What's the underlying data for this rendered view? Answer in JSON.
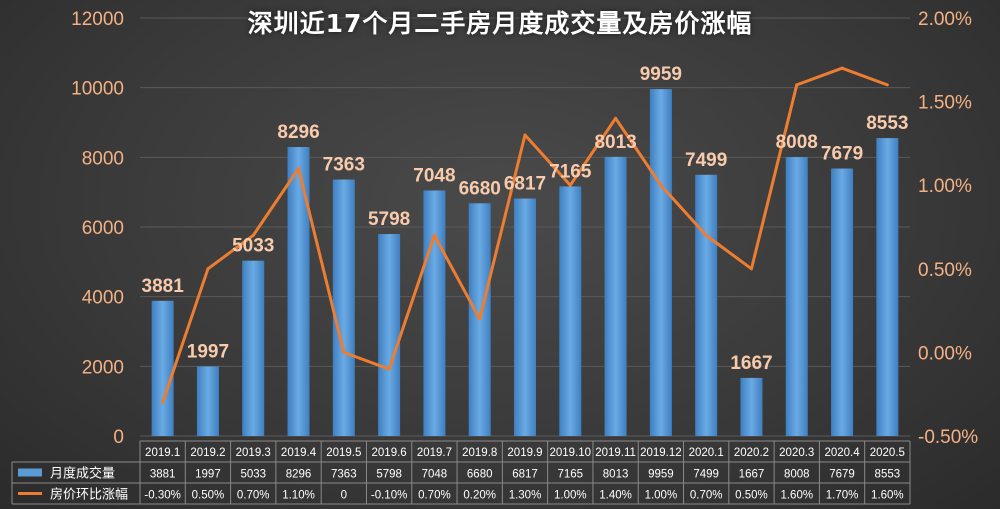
{
  "chart_data": {
    "type": "bar",
    "title": "深圳近17个月二手房月度成交量及房价涨幅",
    "categories": [
      "2019.1",
      "2019.2",
      "2019.3",
      "2019.4",
      "2019.5",
      "2019.6",
      "2019.7",
      "2019.8",
      "2019.9",
      "2019.10",
      "2019.11",
      "2019.12",
      "2020.1",
      "2020.2",
      "2020.3",
      "2020.4",
      "2020.5"
    ],
    "series": [
      {
        "name": "月度成交量",
        "type": "bar",
        "axis": "left",
        "values": [
          3881,
          1997,
          5033,
          8296,
          7363,
          5798,
          7048,
          6680,
          6817,
          7165,
          8013,
          9959,
          7499,
          1667,
          8008,
          7679,
          8553
        ],
        "table_labels": [
          "3881",
          "1997",
          "5033",
          "8296",
          "7363",
          "5798",
          "7048",
          "6680",
          "6817",
          "7165",
          "8013",
          "9959",
          "7499",
          "1667",
          "8008",
          "7679",
          "8553"
        ]
      },
      {
        "name": "房价环比涨幅",
        "type": "line",
        "axis": "right",
        "values": [
          -0.3,
          0.5,
          0.7,
          1.1,
          0,
          -0.1,
          0.7,
          0.2,
          1.3,
          1.0,
          1.4,
          1.0,
          0.7,
          0.5,
          1.6,
          1.7,
          1.6
        ],
        "table_labels": [
          "-0.30%",
          "0.50%",
          "0.70%",
          "1.10%",
          "0",
          "-0.10%",
          "0.70%",
          "0.20%",
          "1.30%",
          "1.00%",
          "1.40%",
          "1.00%",
          "0.70%",
          "0.50%",
          "1.60%",
          "1.70%",
          "1.60%"
        ]
      }
    ],
    "y_left": {
      "min": 0,
      "max": 12000,
      "ticks": [
        "0",
        "2000",
        "4000",
        "6000",
        "8000",
        "10000",
        "12000"
      ]
    },
    "y_right": {
      "min": -0.5,
      "max": 2.0,
      "ticks": [
        "-0.50%",
        "0.00%",
        "0.50%",
        "1.00%",
        "1.50%",
        "2.00%"
      ]
    },
    "grid": true,
    "legend": "data-table"
  },
  "colors": {
    "bar": "#5b9bd5",
    "line": "#ed7d31",
    "axis_label": "#f4b183",
    "data_label": "#f8cbad",
    "table_text": "#ffffff"
  }
}
